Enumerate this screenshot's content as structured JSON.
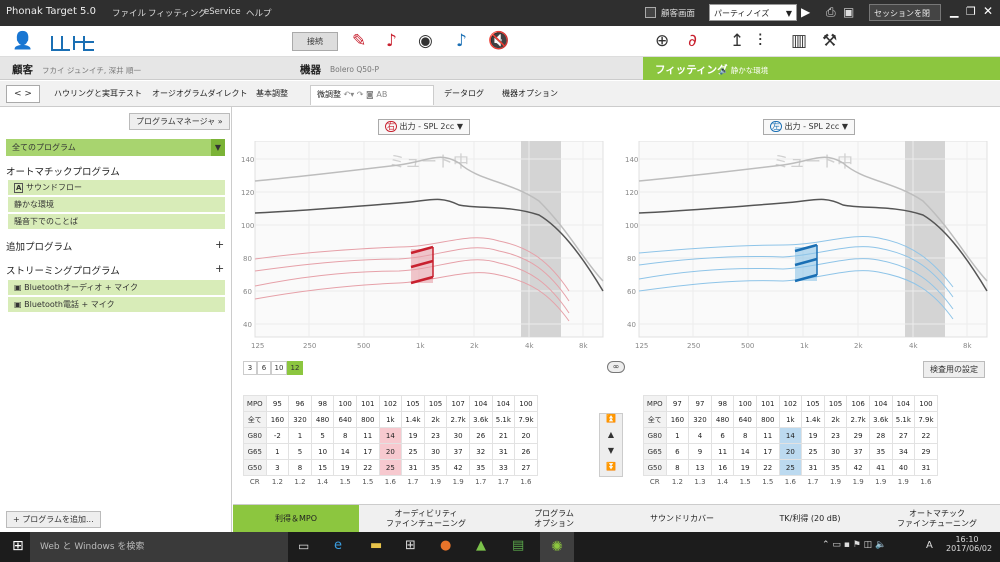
{
  "titlebar": {
    "title": "Phonak Target 5.0",
    "menu": [
      "ファイル",
      "フィッティング",
      "eService",
      "ヘルプ"
    ],
    "client_screen": "顧客画面",
    "env_value": "パーティノイズ",
    "close_session": "セッションを閉じる"
  },
  "header": {
    "client_label": "顧客",
    "client_name": "フカイ ジュンイチ, 深井 順一",
    "device_label": "機器",
    "device_name": "Bolero Q50-P",
    "fitting_label": "フィッティング",
    "fitting_env": "静かな環境"
  },
  "toolbar": {
    "connect": "接続"
  },
  "tabs": [
    "ハウリングと実耳テスト",
    "オージオグラムダイレクト",
    "基本調整",
    "微調整",
    "データログ",
    "機器オプション"
  ],
  "sidebar": {
    "program_manager": "プログラムマネージャ",
    "all_programs": "全てのプログラム",
    "auto_title": "オートマチックプログラム",
    "auto_items": [
      "サウンドフロー",
      "静かな環境",
      "騒音下でのことば"
    ],
    "add_title": "追加プログラム",
    "stream_title": "ストリーミングプログラム",
    "stream_items": [
      "Bluetoothオーディオ + マイク",
      "Bluetooth電話 + マイク"
    ],
    "add_program": "+ プログラムを追加..."
  },
  "right_ear": {
    "badge": "右",
    "selector": "出力 - SPL 2cc",
    "mute": "ミュート中"
  },
  "left_ear": {
    "badge": "左",
    "selector": "出力 - SPL 2cc",
    "mute": "ミュート中"
  },
  "y_ticks": [
    "140",
    "120",
    "100",
    "80",
    "60",
    "40"
  ],
  "x_ticks": [
    "125",
    "250",
    "500",
    "1k",
    "2k",
    "4k",
    "8k"
  ],
  "channels": [
    "3",
    "6",
    "10",
    "12"
  ],
  "check_settings": "検査用の設定",
  "right_table": {
    "rows": [
      [
        "MPO",
        "95",
        "96",
        "98",
        "100",
        "101",
        "102",
        "105",
        "105",
        "107",
        "104",
        "104",
        "100"
      ],
      [
        "全て",
        "160",
        "320",
        "480",
        "640",
        "800",
        "1k",
        "1.4k",
        "2k",
        "2.7k",
        "3.6k",
        "5.1k",
        "7.9k"
      ],
      [
        "G80",
        "-2",
        "1",
        "5",
        "8",
        "11",
        "14",
        "19",
        "23",
        "30",
        "26",
        "21",
        "20"
      ],
      [
        "G65",
        "1",
        "5",
        "10",
        "14",
        "17",
        "20",
        "25",
        "30",
        "37",
        "32",
        "31",
        "26"
      ],
      [
        "G50",
        "3",
        "8",
        "15",
        "19",
        "22",
        "25",
        "31",
        "35",
        "42",
        "35",
        "33",
        "27"
      ]
    ],
    "cr": [
      "CR",
      "1.2",
      "1.2",
      "1.4",
      "1.5",
      "1.5",
      "1.6",
      "1.7",
      "1.9",
      "1.9",
      "1.7",
      "1.7",
      "1.6"
    ]
  },
  "left_table": {
    "rows": [
      [
        "MPO",
        "97",
        "97",
        "98",
        "100",
        "101",
        "102",
        "105",
        "105",
        "106",
        "104",
        "104",
        "100"
      ],
      [
        "全て",
        "160",
        "320",
        "480",
        "640",
        "800",
        "1k",
        "1.4k",
        "2k",
        "2.7k",
        "3.6k",
        "5.1k",
        "7.9k"
      ],
      [
        "G80",
        "1",
        "4",
        "6",
        "8",
        "11",
        "14",
        "19",
        "23",
        "29",
        "28",
        "27",
        "22"
      ],
      [
        "G65",
        "6",
        "9",
        "11",
        "14",
        "17",
        "20",
        "25",
        "30",
        "37",
        "35",
        "34",
        "29"
      ],
      [
        "G50",
        "8",
        "13",
        "16",
        "19",
        "22",
        "25",
        "31",
        "35",
        "42",
        "41",
        "40",
        "31"
      ]
    ],
    "cr": [
      "CR",
      "1.2",
      "1.3",
      "1.4",
      "1.5",
      "1.5",
      "1.6",
      "1.7",
      "1.9",
      "1.9",
      "1.9",
      "1.9",
      "1.6"
    ]
  },
  "bottom_tabs": [
    "利得＆MPO",
    "オーディビリティ\nファインチューニング",
    "プログラム\nオプション",
    "サウンドリカバー",
    "TK/利得 (20 dB)",
    "オートマチック\nファインチューニング"
  ],
  "taskbar": {
    "search": "Web と Windows を検索",
    "time": "16:10",
    "date": "2017/06/02",
    "ime": "A"
  },
  "colors": {
    "accent_green": "#8cc63f",
    "right_red": "#c8202e",
    "left_blue": "#1a6fb4"
  }
}
